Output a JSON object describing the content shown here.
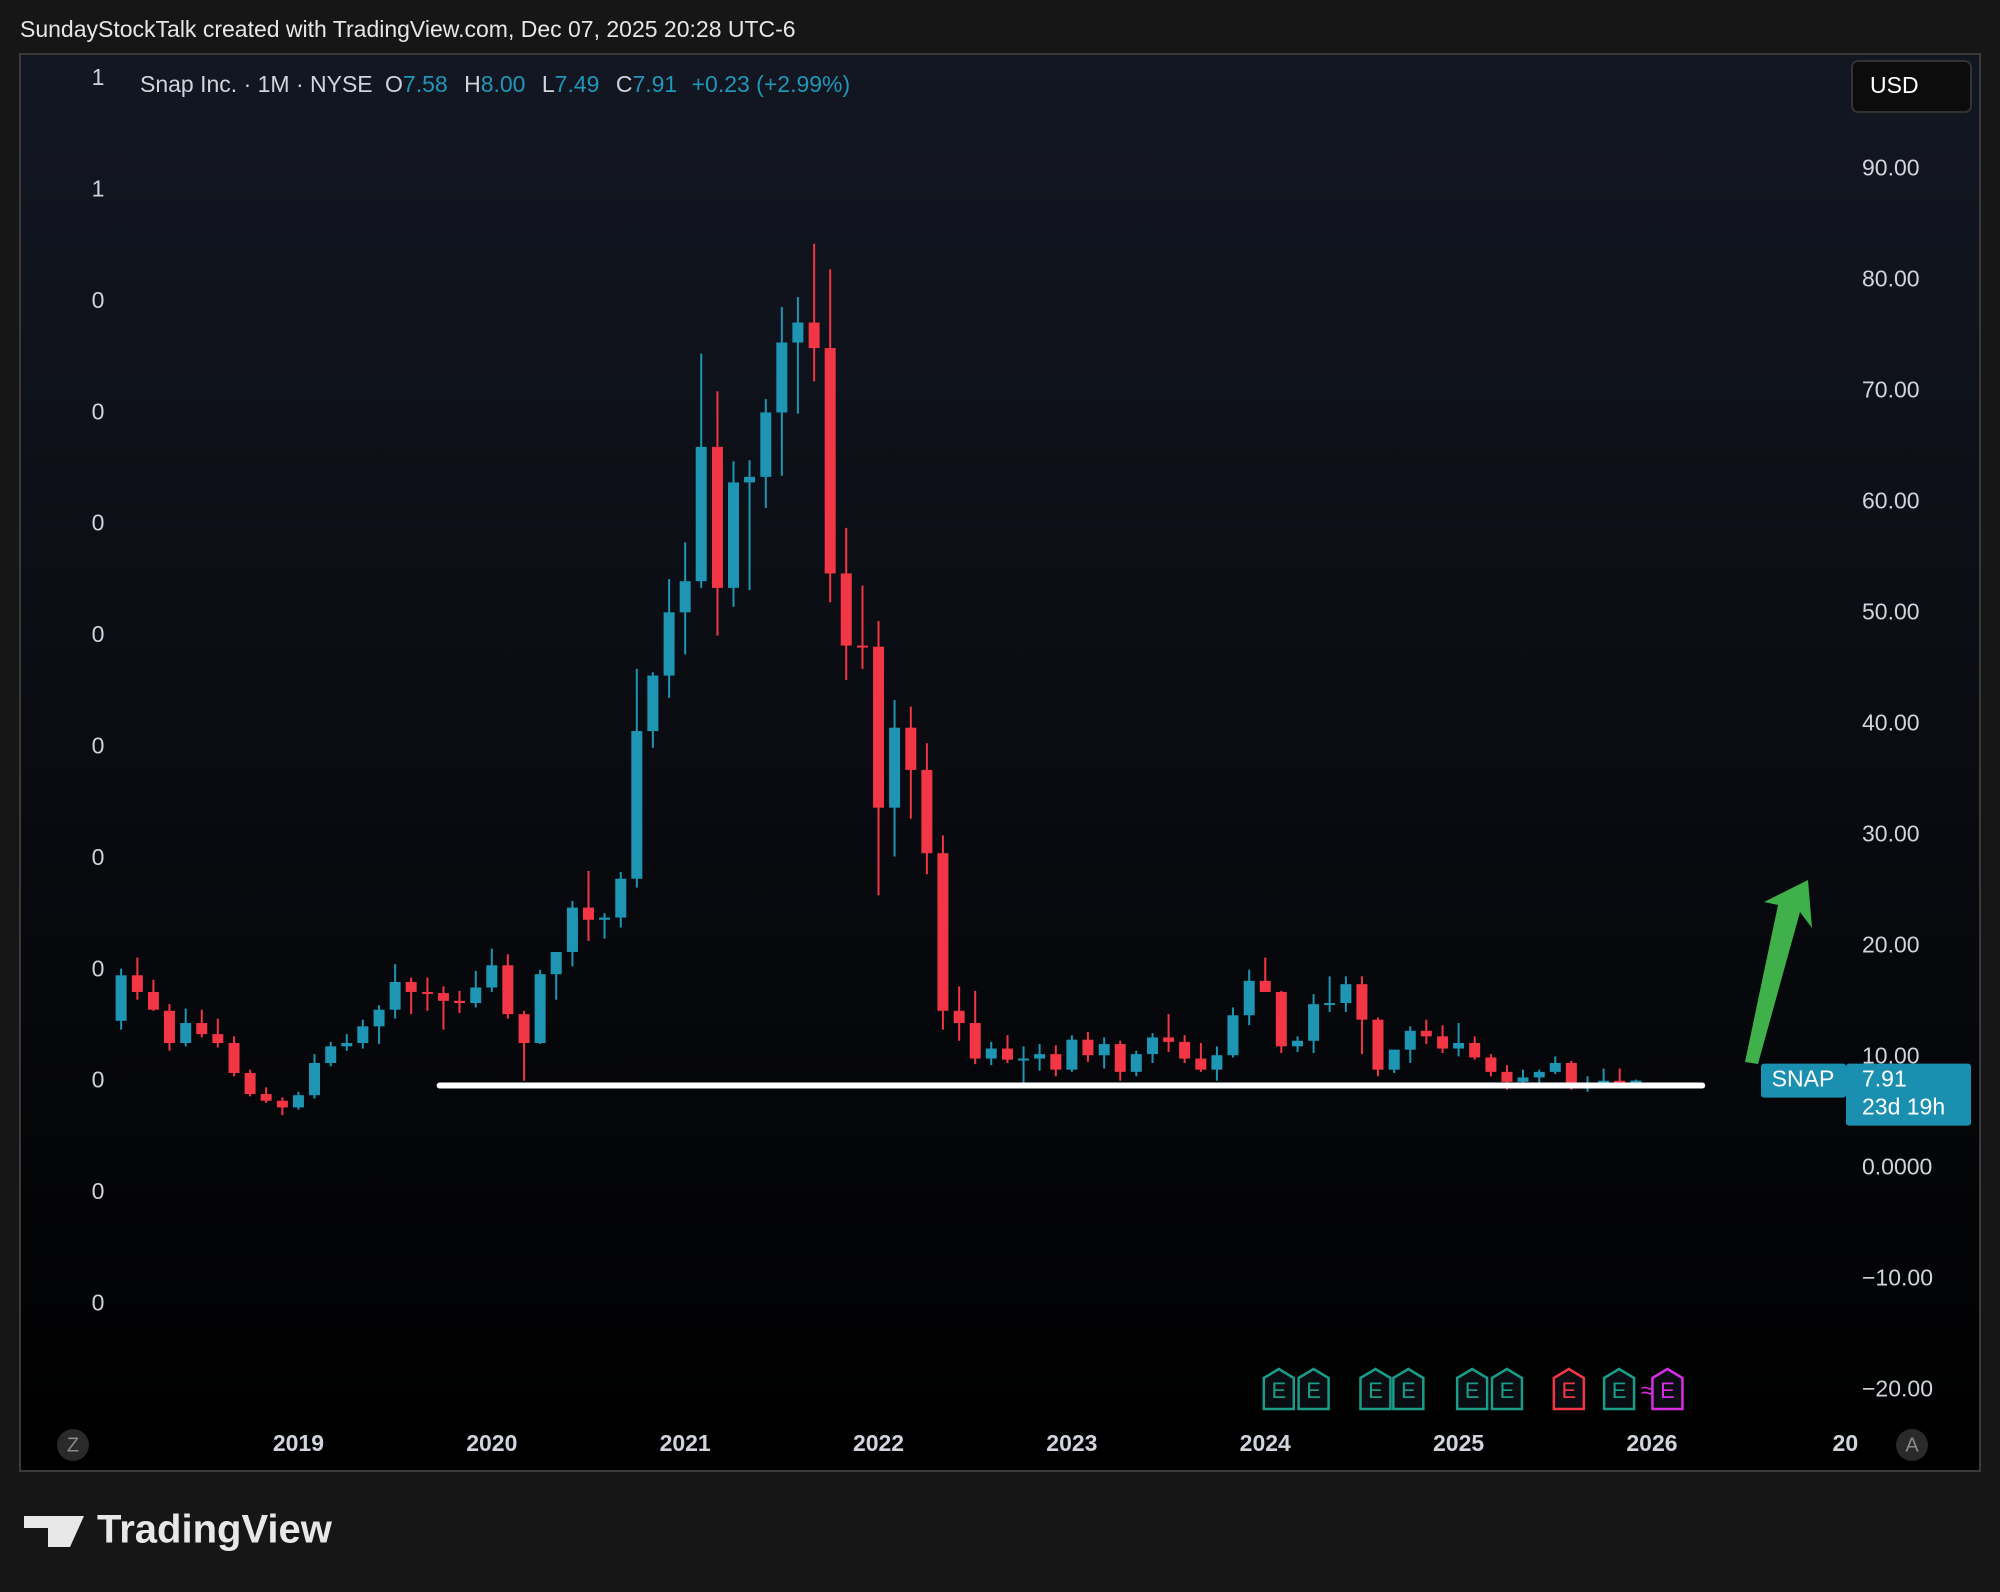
{
  "watermark": "SundayStockTalk created with TradingView.com, Dec 07, 2025 20:28 UTC-6",
  "brand": "TradingView",
  "chart_data": {
    "type": "candlestick",
    "legend": {
      "symbol": "Snap Inc. · 1M · NYSE",
      "open_label": "O",
      "open": "7.58",
      "high_label": "H",
      "high": "8.00",
      "low_label": "L",
      "low": "7.49",
      "close_label": "C",
      "close": "7.91",
      "change": "+0.23 (+2.99%)"
    },
    "currency": "USD",
    "last_price": {
      "symbol": "SNAP",
      "price": "7.91",
      "countdown": "23d 19h"
    },
    "left_scale_labels": [
      "1",
      "1",
      "0",
      "0",
      "0",
      "0",
      "0",
      "0",
      "0",
      "0",
      "0",
      "0"
    ],
    "corner_labels": [
      "Z",
      "A"
    ],
    "up_color": "#1e95b3",
    "down_color": "#f23645",
    "xlim": [
      2017.56,
      2027.05
    ],
    "ylim": [
      -23.2,
      100.3
    ],
    "xticks": [
      2019,
      2020,
      2021,
      2022,
      2023,
      2024,
      2025,
      2026,
      {
        "value": 2027,
        "label": "20"
      }
    ],
    "yticks": [
      {
        "value": 90,
        "label": "90.00"
      },
      {
        "value": 80,
        "label": "80.00"
      },
      {
        "value": 70,
        "label": "70.00"
      },
      {
        "value": 60,
        "label": "60.00"
      },
      {
        "value": 50,
        "label": "50.00"
      },
      {
        "value": 40,
        "label": "40.00"
      },
      {
        "value": 30,
        "label": "30.00"
      },
      {
        "value": 20,
        "label": "20.00"
      },
      {
        "value": 10,
        "label": "10.00"
      },
      {
        "value": 0,
        "label": "0.0000"
      },
      {
        "value": -10,
        "label": "−10.00"
      },
      {
        "value": -20,
        "label": "−20.00"
      }
    ],
    "grid": false,
    "x": [
      2018.083,
      2018.167,
      2018.25,
      2018.333,
      2018.417,
      2018.5,
      2018.583,
      2018.667,
      2018.75,
      2018.833,
      2018.917,
      2019,
      2019.083,
      2019.167,
      2019.25,
      2019.333,
      2019.417,
      2019.5,
      2019.583,
      2019.667,
      2019.75,
      2019.833,
      2019.917,
      2020,
      2020.083,
      2020.167,
      2020.25,
      2020.333,
      2020.417,
      2020.5,
      2020.583,
      2020.667,
      2020.75,
      2020.833,
      2020.917,
      2021,
      2021.083,
      2021.167,
      2021.25,
      2021.333,
      2021.417,
      2021.5,
      2021.583,
      2021.667,
      2021.75,
      2021.833,
      2021.917,
      2022,
      2022.083,
      2022.167,
      2022.25,
      2022.333,
      2022.417,
      2022.5,
      2022.583,
      2022.667,
      2022.75,
      2022.833,
      2022.917,
      2023,
      2023.083,
      2023.167,
      2023.25,
      2023.333,
      2023.417,
      2023.5,
      2023.583,
      2023.667,
      2023.75,
      2023.833,
      2023.917,
      2024,
      2024.083,
      2024.167,
      2024.25,
      2024.333,
      2024.417,
      2024.5,
      2024.583,
      2024.667,
      2024.75,
      2024.833,
      2024.917,
      2025,
      2025.083,
      2025.167,
      2025.25,
      2025.333,
      2025.417,
      2025.5,
      2025.583,
      2025.667,
      2025.75,
      2025.833,
      2025.917
    ],
    "open": [
      13.3,
      17.4,
      15.9,
      14.2,
      11.3,
      13.1,
      12.1,
      11.3,
      8.6,
      6.7,
      6.1,
      5.5,
      6.6,
      9.5,
      11.0,
      11.3,
      12.8,
      14.3,
      16.8,
      15.9,
      15.8,
      15.1,
      14.9,
      16.3,
      18.3,
      13.9,
      11.3,
      17.5,
      19.5,
      23.5,
      22.4,
      22.6,
      26.1,
      39.4,
      44.4,
      50.1,
      52.9,
      65.0,
      52.3,
      61.8,
      62.3,
      68.1,
      74.4,
      76.2,
      73.9,
      53.6,
      47.1,
      47.0,
      32.5,
      39.7,
      35.9,
      28.4,
      14.2,
      13.1,
      9.9,
      10.8,
      9.8,
      9.9,
      10.3,
      8.9,
      11.6,
      10.2,
      11.2,
      8.7,
      10.3,
      11.8,
      11.4,
      9.9,
      8.9,
      10.2,
      13.8,
      16.9,
      15.9,
      11.0,
      11.5,
      14.8,
      14.9,
      16.6,
      13.4,
      8.9,
      10.7,
      12.4,
      11.9,
      10.8,
      11.3,
      10.0,
      8.7,
      7.8,
      8.2,
      8.7,
      9.5,
      7.2,
      7.7,
      7.9,
      7.58
    ],
    "high": [
      18.0,
      19.0,
      17.0,
      14.8,
      14.4,
      14.3,
      13.5,
      11.9,
      8.9,
      7.3,
      6.4,
      6.9,
      10.3,
      11.4,
      12.1,
      13.4,
      14.7,
      18.4,
      17.2,
      17.2,
      16.4,
      16.0,
      17.8,
      19.8,
      19.3,
      14.2,
      17.9,
      19.5,
      24.1,
      26.8,
      23.0,
      26.7,
      45.0,
      44.7,
      53.1,
      56.4,
      73.4,
      70.0,
      63.7,
      63.8,
      69.3,
      77.6,
      78.5,
      83.3,
      81.0,
      57.7,
      52.5,
      49.3,
      42.2,
      41.6,
      38.3,
      30.0,
      16.4,
      16.0,
      11.4,
      12.0,
      11.0,
      11.2,
      11.1,
      12.0,
      12.3,
      11.8,
      11.5,
      10.6,
      12.2,
      13.9,
      12.0,
      11.3,
      11.0,
      14.5,
      17.9,
      19.0,
      16.0,
      11.9,
      15.7,
      17.3,
      17.3,
      17.3,
      13.6,
      10.7,
      12.8,
      13.4,
      12.9,
      13.1,
      11.9,
      10.3,
      9.3,
      8.9,
      8.9,
      10.1,
      9.7,
      8.3,
      9.0,
      9.0,
      8.0
    ],
    "low": [
      12.5,
      15.2,
      14.2,
      10.6,
      11.0,
      11.8,
      10.9,
      8.3,
      6.5,
      5.9,
      4.8,
      5.3,
      6.3,
      9.2,
      10.6,
      10.8,
      11.2,
      13.5,
      13.9,
      14.2,
      12.5,
      14.0,
      14.5,
      15.9,
      13.5,
      7.9,
      11.2,
      15.2,
      18.2,
      20.5,
      20.7,
      21.7,
      25.3,
      37.9,
      42.4,
      46.3,
      52.3,
      48.0,
      50.6,
      52.1,
      59.5,
      62.4,
      68.0,
      70.9,
      51.0,
      44.0,
      45.0,
      24.6,
      28.1,
      31.5,
      26.5,
      12.5,
      11.5,
      9.4,
      9.3,
      9.5,
      7.3,
      8.8,
      8.3,
      8.7,
      9.6,
      9.0,
      7.9,
      8.3,
      9.5,
      10.5,
      9.5,
      8.7,
      7.9,
      10.0,
      12.9,
      15.9,
      10.4,
      10.5,
      10.4,
      14.1,
      14.1,
      10.3,
      8.3,
      8.6,
      9.5,
      11.2,
      10.4,
      10.1,
      9.8,
      8.3,
      7.1,
      7.3,
      7.4,
      8.5,
      7.1,
      6.9,
      7.5,
      7.4,
      7.49
    ],
    "close": [
      17.4,
      15.9,
      14.3,
      11.3,
      13.1,
      12.1,
      11.3,
      8.6,
      6.7,
      6.1,
      5.5,
      6.6,
      9.5,
      11.0,
      11.3,
      12.8,
      14.3,
      16.8,
      15.9,
      15.8,
      15.1,
      14.9,
      16.3,
      18.3,
      13.9,
      11.3,
      17.5,
      19.5,
      23.5,
      22.4,
      22.6,
      26.1,
      39.4,
      44.4,
      50.1,
      52.9,
      65.0,
      52.3,
      61.8,
      62.3,
      68.1,
      74.4,
      76.2,
      73.9,
      53.6,
      47.1,
      47.0,
      32.5,
      39.7,
      35.9,
      28.4,
      14.2,
      13.1,
      9.9,
      10.8,
      9.8,
      9.9,
      10.3,
      8.9,
      11.6,
      10.2,
      11.2,
      8.7,
      10.3,
      11.8,
      11.4,
      9.9,
      8.9,
      10.2,
      13.8,
      16.9,
      15.9,
      11.0,
      11.5,
      14.8,
      14.9,
      16.6,
      13.4,
      8.9,
      10.7,
      12.4,
      11.9,
      10.8,
      11.3,
      10.0,
      8.7,
      7.8,
      8.2,
      8.7,
      9.5,
      7.2,
      7.7,
      7.9,
      7.6,
      7.91
    ],
    "support_line": {
      "x": [
        2019.73,
        2026.26
      ],
      "y": 7.47,
      "color": "#ffffff"
    },
    "earnings_markers": [
      {
        "x": 2024.07,
        "label": "E",
        "color": "#1a9c88"
      },
      {
        "x": 2024.25,
        "label": "E",
        "color": "#1a9c88"
      },
      {
        "x": 2024.57,
        "label": "E",
        "color": "#1a9c88"
      },
      {
        "x": 2024.74,
        "label": "E",
        "color": "#1a9c88"
      },
      {
        "x": 2025.07,
        "label": "E",
        "color": "#1a9c88"
      },
      {
        "x": 2025.25,
        "label": "E",
        "color": "#1a9c88"
      },
      {
        "x": 2025.57,
        "label": "E",
        "color": "#f23645"
      },
      {
        "x": 2025.83,
        "label": "E",
        "color": "#1a9c88"
      },
      {
        "x": 2026.08,
        "label": "E",
        "color": "#d62ee0",
        "icon": "≈"
      }
    ]
  }
}
